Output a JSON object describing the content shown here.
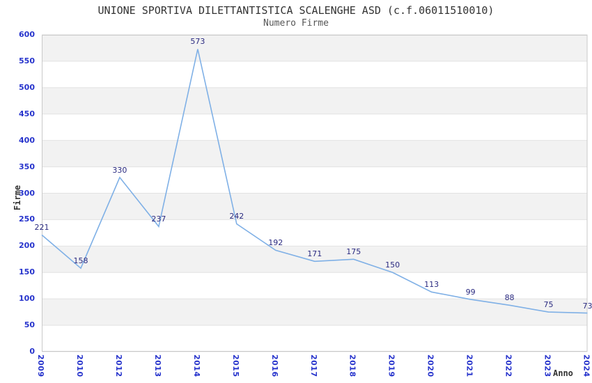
{
  "chart_data": {
    "type": "line",
    "title": "UNIONE SPORTIVA DILETTANTISTICA SCALENGHE ASD (c.f.06011510010)",
    "subtitle": "Numero Firme",
    "xlabel": "Anno",
    "ylabel": "Firme",
    "categories": [
      "2009",
      "2010",
      "2012",
      "2013",
      "2014",
      "2015",
      "2016",
      "2017",
      "2018",
      "2019",
      "2020",
      "2021",
      "2022",
      "2023",
      "2024"
    ],
    "values": [
      221,
      158,
      330,
      237,
      573,
      242,
      192,
      171,
      175,
      150,
      113,
      99,
      88,
      75,
      73
    ],
    "ylim": [
      0,
      600
    ],
    "ytick_step": 50,
    "grid": true,
    "background_bands": "alternating gray/white per 50 units",
    "legend": "none",
    "colors": {
      "line": "#7fb0e6",
      "tick_labels": "#2633cc",
      "data_labels": "#2a2a80",
      "band_gray": "#f2f2f2",
      "gridline": "#e2e2e2",
      "frame": "#c9c9c9",
      "title": "#333333",
      "subtitle": "#555555",
      "axis_titles": "#333333"
    }
  }
}
